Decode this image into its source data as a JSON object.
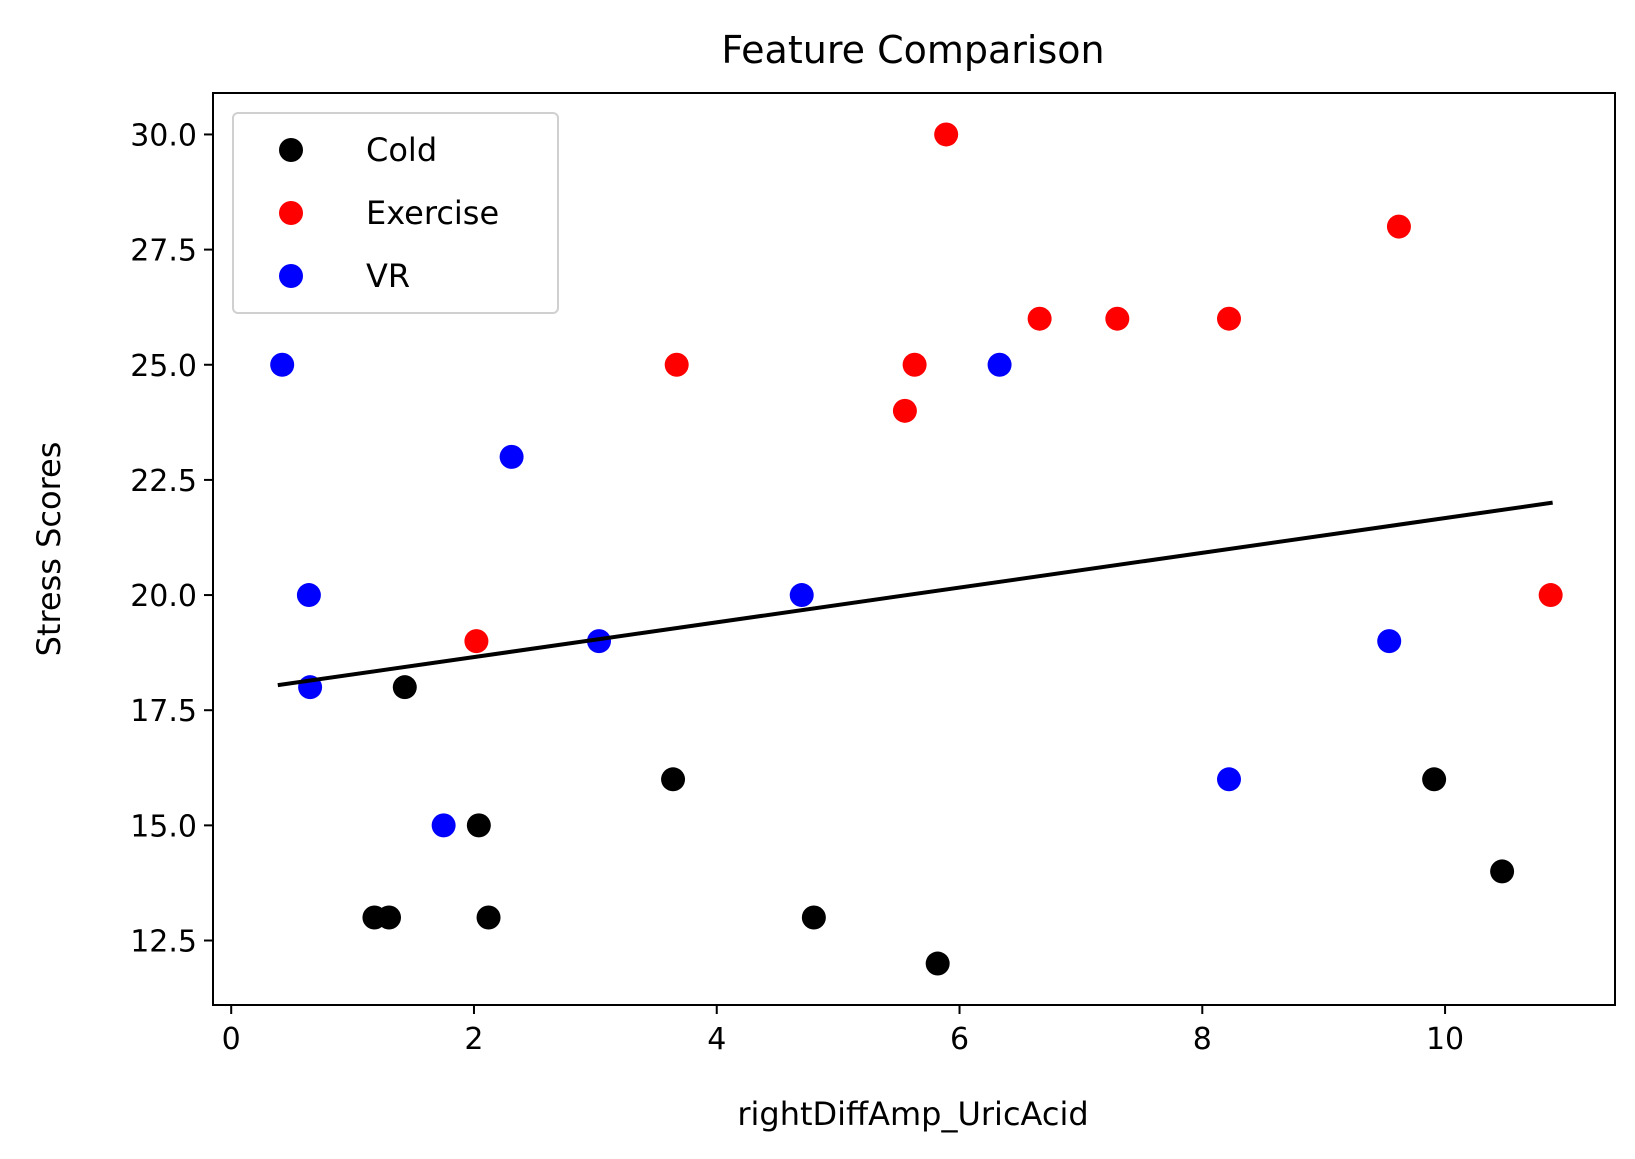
{
  "chart_data": {
    "type": "scatter",
    "title": "Feature Comparison",
    "xlabel": "rightDiffAmp_UricAcid",
    "ylabel": "Stress Scores",
    "xlim": [
      -0.15,
      11.4
    ],
    "ylim": [
      11.1,
      30.9
    ],
    "xticks": [
      0,
      2,
      4,
      6,
      8,
      10
    ],
    "xtick_labels": [
      "0",
      "2",
      "4",
      "6",
      "8",
      "10"
    ],
    "yticks": [
      12.5,
      15.0,
      17.5,
      20.0,
      22.5,
      25.0,
      27.5,
      30.0
    ],
    "ytick_labels": [
      "12.5",
      "15.0",
      "17.5",
      "20.0",
      "22.5",
      "25.0",
      "27.5",
      "30.0"
    ],
    "grid": false,
    "legend_position": "top-left",
    "series": [
      {
        "name": "Cold",
        "color": "#000000",
        "points": [
          {
            "x": 1.18,
            "y": 13
          },
          {
            "x": 1.3,
            "y": 13
          },
          {
            "x": 1.43,
            "y": 18
          },
          {
            "x": 2.04,
            "y": 15
          },
          {
            "x": 2.12,
            "y": 13
          },
          {
            "x": 3.64,
            "y": 16
          },
          {
            "x": 4.8,
            "y": 13
          },
          {
            "x": 5.82,
            "y": 12
          },
          {
            "x": 9.91,
            "y": 16
          },
          {
            "x": 10.47,
            "y": 14
          }
        ]
      },
      {
        "name": "Exercise",
        "color": "#ff0000",
        "points": [
          {
            "x": 2.02,
            "y": 19
          },
          {
            "x": 3.67,
            "y": 25
          },
          {
            "x": 5.55,
            "y": 24
          },
          {
            "x": 5.63,
            "y": 25
          },
          {
            "x": 5.89,
            "y": 30
          },
          {
            "x": 6.66,
            "y": 26
          },
          {
            "x": 7.3,
            "y": 26
          },
          {
            "x": 8.22,
            "y": 26
          },
          {
            "x": 9.62,
            "y": 28
          },
          {
            "x": 10.87,
            "y": 20
          }
        ]
      },
      {
        "name": "VR",
        "color": "#0000ff",
        "points": [
          {
            "x": 0.42,
            "y": 25
          },
          {
            "x": 0.64,
            "y": 20
          },
          {
            "x": 0.65,
            "y": 18
          },
          {
            "x": 1.75,
            "y": 15
          },
          {
            "x": 2.31,
            "y": 23
          },
          {
            "x": 3.03,
            "y": 19
          },
          {
            "x": 4.7,
            "y": 20
          },
          {
            "x": 6.33,
            "y": 25
          },
          {
            "x": 8.22,
            "y": 16
          },
          {
            "x": 9.54,
            "y": 19
          }
        ]
      }
    ],
    "fit_line": {
      "color": "#000000",
      "x": [
        0.4,
        10.87
      ],
      "y": [
        18.05,
        22.0
      ]
    }
  }
}
